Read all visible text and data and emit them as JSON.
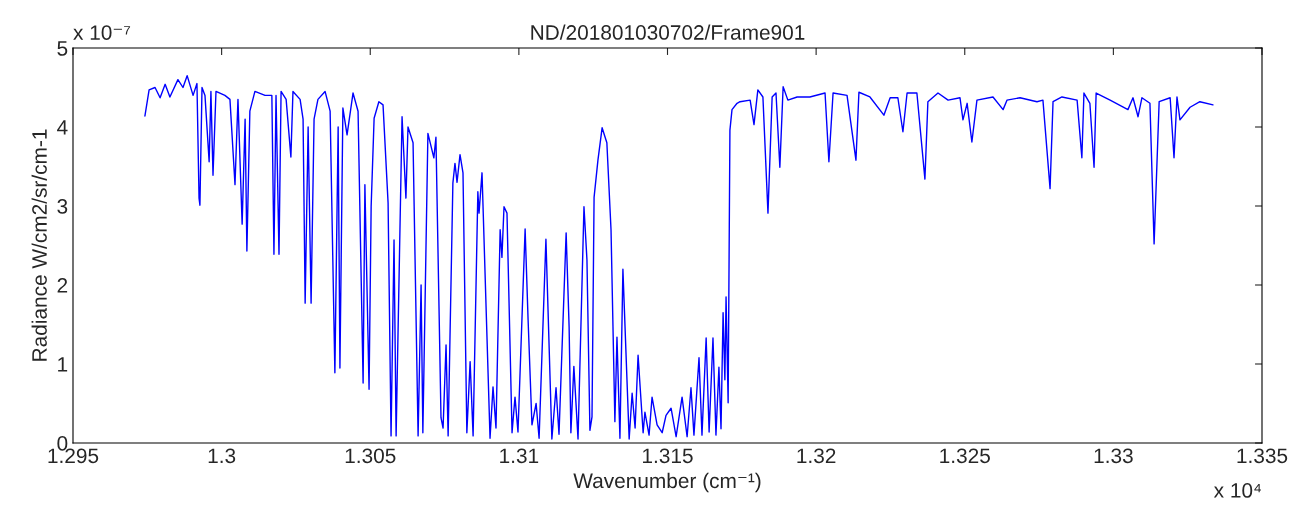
{
  "chart_data": {
    "type": "line",
    "title": "ND/201801030702/Frame901",
    "xlabel": "Wavenumber (cm⁻¹)",
    "ylabel": "Radiance W/cm2/sr/cm-1",
    "annotations": [
      "x 10⁻⁷",
      "x 10⁴"
    ],
    "xlim": [
      1.295,
      1.335
    ],
    "xticks": [
      1.295,
      1.3,
      1.305,
      1.31,
      1.315,
      1.32,
      1.325,
      1.33,
      1.335
    ],
    "ylim": [
      0,
      5
    ],
    "yticks": [
      0,
      1,
      2,
      3,
      4,
      5
    ],
    "grid": false,
    "legend": false,
    "marker": "none",
    "line_style": "solid",
    "series": [
      {
        "color": "#0000ff",
        "x": [
          1.29742,
          1.29756,
          1.29776,
          1.29793,
          1.2981,
          1.29826,
          1.29853,
          1.2987,
          1.29884,
          1.29904,
          1.29917,
          1.29924,
          1.29927,
          1.29934,
          1.29944,
          1.29958,
          1.29964,
          1.29971,
          1.29981,
          1.30011,
          1.30028,
          1.30045,
          1.30055,
          1.30069,
          1.30079,
          1.30085,
          1.30095,
          1.30112,
          1.30146,
          1.30169,
          1.30176,
          1.30183,
          1.30193,
          1.302,
          1.30217,
          1.30233,
          1.3024,
          1.30264,
          1.30274,
          1.30281,
          1.30291,
          1.30301,
          1.30311,
          1.30324,
          1.30348,
          1.30365,
          1.30381,
          1.30392,
          1.30398,
          1.30408,
          1.30422,
          1.30442,
          1.30459,
          1.30476,
          1.30482,
          1.30496,
          1.30503,
          1.30513,
          1.30529,
          1.30543,
          1.3056,
          1.3057,
          1.3058,
          1.30587,
          1.30607,
          1.3062,
          1.30627,
          1.30644,
          1.30661,
          1.30671,
          1.30677,
          1.30694,
          1.30714,
          1.30721,
          1.30738,
          1.30745,
          1.30755,
          1.30762,
          1.30778,
          1.30785,
          1.30792,
          1.30802,
          1.30812,
          1.30825,
          1.30836,
          1.30846,
          1.30862,
          1.30866,
          1.30876,
          1.30903,
          1.30913,
          1.30923,
          1.30937,
          1.30943,
          1.3095,
          1.3096,
          1.30977,
          1.30987,
          1.30997,
          1.31021,
          1.31031,
          1.31044,
          1.31058,
          1.31068,
          1.31091,
          1.31111,
          1.31125,
          1.31135,
          1.31159,
          1.31169,
          1.31175,
          1.31185,
          1.31199,
          1.31219,
          1.31229,
          1.31239,
          1.31246,
          1.31253,
          1.31266,
          1.3128,
          1.31296,
          1.3131,
          1.31323,
          1.3133,
          1.3134,
          1.3135,
          1.31371,
          1.31381,
          1.31391,
          1.31401,
          1.31418,
          1.31424,
          1.31438,
          1.31448,
          1.31465,
          1.31482,
          1.31495,
          1.31512,
          1.31529,
          1.31549,
          1.31566,
          1.31579,
          1.31589,
          1.31606,
          1.31616,
          1.3163,
          1.3164,
          1.31653,
          1.31663,
          1.31673,
          1.3168,
          1.31687,
          1.31693,
          1.31697,
          1.31704,
          1.3171,
          1.31717,
          1.31734,
          1.31744,
          1.31778,
          1.31791,
          1.31804,
          1.31821,
          1.31838,
          1.31852,
          1.31865,
          1.31878,
          1.31889,
          1.31905,
          1.31936,
          1.31979,
          1.3203,
          1.32043,
          1.32057,
          1.32104,
          1.32134,
          1.32144,
          1.32181,
          1.32228,
          1.32249,
          1.32275,
          1.32292,
          1.32306,
          1.32339,
          1.32366,
          1.32376,
          1.3241,
          1.32444,
          1.32484,
          1.32494,
          1.32508,
          1.32524,
          1.32541,
          1.32595,
          1.32629,
          1.32642,
          1.32686,
          1.32743,
          1.32763,
          1.32787,
          1.32797,
          1.32827,
          1.32878,
          1.32894,
          1.32901,
          1.32921,
          1.32935,
          1.32942,
          1.32989,
          1.33049,
          1.33066,
          1.33083,
          1.33096,
          1.33123,
          1.33137,
          1.33154,
          1.33191,
          1.33204,
          1.33214,
          1.33224,
          1.33258,
          1.33291,
          1.33335
        ],
        "values": [
          4.14,
          4.47,
          4.5,
          4.37,
          4.54,
          4.38,
          4.6,
          4.5,
          4.65,
          4.4,
          4.55,
          3.1,
          3.01,
          4.5,
          4.4,
          3.56,
          4.45,
          3.39,
          4.45,
          4.4,
          4.35,
          3.27,
          4.35,
          2.77,
          4.1,
          2.43,
          4.2,
          4.45,
          4.4,
          4.4,
          2.39,
          4.4,
          2.39,
          4.45,
          4.35,
          3.62,
          4.45,
          4.35,
          4.1,
          1.77,
          4.0,
          1.77,
          4.1,
          4.35,
          4.45,
          4.2,
          0.89,
          4.0,
          0.95,
          4.24,
          3.9,
          4.43,
          4.2,
          0.76,
          3.27,
          0.68,
          2.99,
          4.11,
          4.32,
          4.28,
          3.04,
          0.09,
          2.57,
          0.09,
          4.13,
          3.1,
          4.0,
          3.8,
          0.09,
          2.0,
          0.13,
          3.92,
          3.61,
          3.87,
          0.32,
          0.19,
          1.24,
          0.09,
          3.29,
          3.54,
          3.3,
          3.65,
          3.42,
          0.13,
          1.03,
          0.09,
          3.18,
          2.91,
          3.42,
          0.06,
          0.71,
          0.19,
          2.7,
          2.35,
          2.99,
          2.91,
          0.13,
          0.58,
          0.14,
          2.71,
          1.56,
          0.23,
          0.5,
          0.06,
          2.58,
          0.05,
          0.7,
          0.11,
          2.66,
          1.47,
          0.13,
          0.97,
          0.05,
          2.99,
          2.32,
          0.16,
          0.33,
          3.11,
          3.58,
          3.99,
          3.8,
          2.7,
          0.27,
          1.34,
          0.06,
          2.2,
          0.05,
          0.63,
          0.19,
          1.11,
          0.13,
          0.39,
          0.1,
          0.58,
          0.23,
          0.13,
          0.35,
          0.44,
          0.08,
          0.58,
          0.08,
          0.7,
          0.1,
          1.08,
          0.1,
          1.33,
          0.14,
          1.33,
          0.1,
          0.96,
          0.18,
          1.65,
          0.8,
          1.85,
          0.51,
          3.96,
          4.22,
          4.3,
          4.32,
          4.34,
          4.03,
          4.47,
          4.38,
          2.91,
          4.38,
          4.43,
          3.49,
          4.51,
          4.34,
          4.38,
          4.38,
          4.43,
          3.56,
          4.43,
          4.4,
          3.58,
          4.44,
          4.38,
          4.15,
          4.37,
          4.37,
          3.94,
          4.43,
          4.43,
          3.34,
          4.32,
          4.43,
          4.34,
          4.37,
          4.09,
          4.3,
          3.81,
          4.34,
          4.38,
          4.22,
          4.34,
          4.37,
          4.32,
          4.34,
          3.22,
          4.32,
          4.38,
          4.34,
          3.61,
          4.43,
          4.3,
          3.49,
          4.43,
          4.34,
          4.22,
          4.37,
          4.13,
          4.37,
          4.3,
          2.52,
          4.32,
          4.37,
          3.61,
          4.38,
          4.09,
          4.25,
          4.32,
          4.28
        ]
      }
    ]
  }
}
